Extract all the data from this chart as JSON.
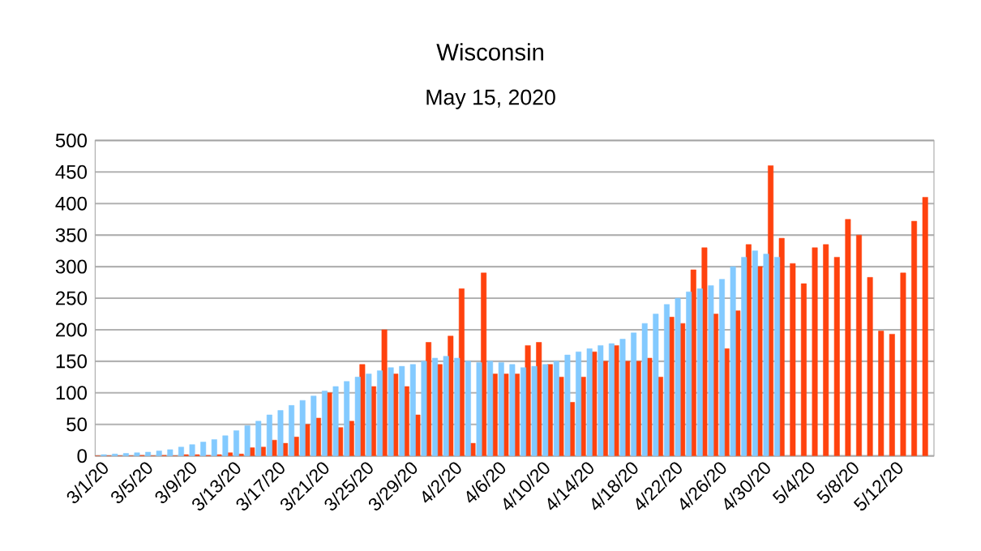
{
  "chart_data": {
    "type": "bar",
    "title": "Wisconsin",
    "subtitle": "May 15, 2020",
    "categories": [
      "3/1/20",
      null,
      null,
      null,
      "3/5/20",
      null,
      null,
      null,
      "3/9/20",
      null,
      null,
      null,
      "3/13/20",
      null,
      null,
      null,
      "3/17/20",
      null,
      null,
      null,
      "3/21/20",
      null,
      null,
      null,
      "3/25/20",
      null,
      null,
      null,
      "3/29/20",
      null,
      null,
      null,
      "4/2/20",
      null,
      null,
      null,
      "4/6/20",
      null,
      null,
      null,
      "4/10/20",
      null,
      null,
      null,
      "4/14/20",
      null,
      null,
      null,
      "4/18/20",
      null,
      null,
      null,
      "4/22/20",
      null,
      null,
      null,
      "4/26/20",
      null,
      null,
      null,
      "4/30/20",
      null,
      null,
      null,
      "5/4/20",
      null,
      null,
      null,
      "5/8/20",
      null,
      null,
      null,
      "5/12/20",
      null,
      null,
      null
    ],
    "series": [
      {
        "color": "#ff420e",
        "values": [
          0,
          0,
          0,
          0,
          1,
          0,
          1,
          0,
          2,
          2,
          1,
          2,
          5,
          3,
          13,
          14,
          25,
          20,
          30,
          50,
          60,
          100,
          45,
          55,
          145,
          110,
          200,
          130,
          110,
          65,
          180,
          145,
          190,
          265,
          20,
          290,
          130,
          130,
          130,
          175,
          180,
          145,
          125,
          85,
          125,
          165,
          150,
          175,
          150,
          150,
          155,
          125,
          220,
          210,
          295,
          330,
          225,
          170,
          230,
          335,
          300,
          460,
          345,
          305,
          273,
          330,
          335,
          315,
          375,
          350,
          283,
          198,
          193,
          290,
          372,
          410
        ]
      },
      {
        "color": "#83caff",
        "values": [
          2,
          3,
          4,
          5,
          6,
          8,
          10,
          14,
          18,
          22,
          26,
          32,
          40,
          48,
          55,
          65,
          72,
          80,
          88,
          95,
          103,
          110,
          118,
          125,
          130,
          135,
          140,
          142,
          145,
          150,
          155,
          158,
          155,
          150,
          148,
          150,
          148,
          145,
          140,
          142,
          145,
          150,
          160,
          165,
          170,
          175,
          178,
          185,
          195,
          210,
          225,
          240,
          250,
          260,
          265,
          270,
          280,
          300,
          315,
          325,
          320,
          315,
          null,
          null,
          null,
          null,
          null,
          null,
          null,
          null,
          null,
          null,
          null,
          null,
          null,
          null
        ]
      }
    ],
    "ylim": [
      0,
      500
    ],
    "yticks": [
      0,
      50,
      100,
      150,
      200,
      250,
      300,
      350,
      400,
      450,
      500
    ],
    "grid": "y"
  }
}
